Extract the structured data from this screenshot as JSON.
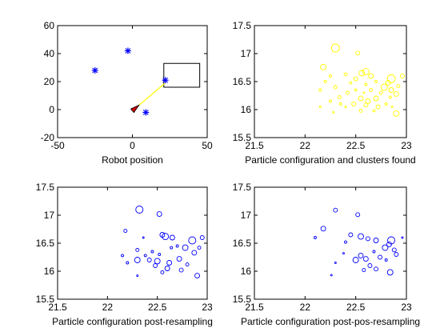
{
  "chart_data": [
    {
      "type": "scatter",
      "xlabel": "Robot position",
      "ylabel": "",
      "xlim": [
        -50,
        50
      ],
      "ylim": [
        -20,
        60
      ],
      "xticks": [
        -50,
        0,
        50
      ],
      "yticks": [
        -20,
        0,
        20,
        40,
        60
      ],
      "colors": {
        "landmark": "#0000ff",
        "robot": "#cc0000",
        "path": "#ffff00",
        "axes": "#000000"
      },
      "landmarks": [
        {
          "x": -25,
          "y": 28
        },
        {
          "x": -3,
          "y": 42
        },
        {
          "x": 22,
          "y": 21
        },
        {
          "x": 9,
          "y": -2
        }
      ],
      "robot": {
        "x": 2,
        "y": 1,
        "heading_deg": 40
      },
      "path": [
        {
          "x": 2,
          "y": 1
        },
        {
          "x": 22,
          "y": 19
        }
      ],
      "observation_box": {
        "x_range": [
          21,
          45
        ],
        "y_range": [
          16,
          33
        ]
      }
    },
    {
      "type": "scatter",
      "xlabel": "Particle configuration and clusters found",
      "ylabel": "",
      "xlim": [
        21.5,
        23
      ],
      "ylim": [
        15.5,
        17.5
      ],
      "xticks": [
        21.5,
        22,
        22.5,
        23
      ],
      "yticks": [
        15.5,
        16,
        16.5,
        17,
        17.5
      ],
      "marker_color": "#ffff00",
      "points": [
        [
          22.3,
          17.1,
          5
        ],
        [
          22.18,
          16.76,
          3.5
        ],
        [
          22.52,
          17.01,
          2.5
        ],
        [
          22.6,
          16.68,
          4
        ],
        [
          22.56,
          16.65,
          3.5
        ],
        [
          22.65,
          16.6,
          3
        ],
        [
          22.5,
          16.55,
          2.5
        ],
        [
          22.85,
          16.55,
          5
        ],
        [
          22.82,
          16.48,
          3
        ],
        [
          22.78,
          16.4,
          4
        ],
        [
          22.85,
          16.35,
          3
        ],
        [
          22.9,
          16.28,
          3
        ],
        [
          22.7,
          16.2,
          3
        ],
        [
          22.55,
          16.2,
          3
        ],
        [
          22.62,
          16.15,
          3
        ],
        [
          22.48,
          16.1,
          2.5
        ],
        [
          22.6,
          16.08,
          2.5
        ],
        [
          22.72,
          16.05,
          2.5
        ],
        [
          22.9,
          15.93,
          3.5
        ],
        [
          22.3,
          16.4,
          2
        ],
        [
          22.42,
          16.3,
          2
        ],
        [
          22.34,
          16.22,
          2
        ],
        [
          22.96,
          16.6,
          2.5
        ],
        [
          22.4,
          16.63,
          2
        ],
        [
          22.25,
          16.6,
          1.5
        ],
        [
          22.2,
          16.5,
          1.5
        ],
        [
          22.15,
          16.35,
          1.5
        ],
        [
          22.45,
          16.48,
          1.5
        ],
        [
          22.65,
          16.35,
          2
        ],
        [
          22.75,
          16.3,
          2
        ],
        [
          22.5,
          16.35,
          1.5
        ],
        [
          22.35,
          16.1,
          1.5
        ],
        [
          22.25,
          16.15,
          1.5
        ],
        [
          22.55,
          15.98,
          2
        ],
        [
          22.8,
          16.1,
          1.5
        ],
        [
          22.92,
          16.42,
          2
        ],
        [
          22.15,
          16.05,
          1
        ],
        [
          22.28,
          15.95,
          1
        ],
        [
          22.7,
          16.5,
          1.5
        ],
        [
          22.6,
          16.45,
          1.5
        ],
        [
          22.4,
          16.05,
          1
        ],
        [
          22.68,
          15.98,
          1.5
        ],
        [
          22.84,
          16.22,
          1.5
        ],
        [
          22.86,
          16.05,
          1
        ],
        [
          22.58,
          16.3,
          1
        ]
      ]
    },
    {
      "type": "scatter",
      "xlabel": "Particle configuration post-resampling",
      "ylabel": "",
      "xlim": [
        21.5,
        23
      ],
      "ylim": [
        15.5,
        17.5
      ],
      "xticks": [
        21.5,
        22,
        22.5,
        23
      ],
      "yticks": [
        15.5,
        16,
        16.5,
        17,
        17.5
      ],
      "marker_color": "#0000ff",
      "points": [
        [
          22.32,
          17.1,
          4.5
        ],
        [
          22.52,
          17.02,
          3
        ],
        [
          22.18,
          16.72,
          2
        ],
        [
          22.55,
          16.65,
          3
        ],
        [
          22.58,
          16.62,
          4
        ],
        [
          22.65,
          16.6,
          3
        ],
        [
          22.85,
          16.55,
          4.5
        ],
        [
          22.78,
          16.42,
          3.5
        ],
        [
          22.87,
          16.33,
          3
        ],
        [
          22.72,
          16.22,
          3
        ],
        [
          22.62,
          16.15,
          3
        ],
        [
          22.5,
          16.18,
          3.5
        ],
        [
          22.42,
          16.2,
          2.5
        ],
        [
          22.48,
          16.1,
          2.5
        ],
        [
          22.6,
          16.05,
          3
        ],
        [
          22.74,
          16.02,
          2.5
        ],
        [
          22.9,
          15.92,
          3
        ],
        [
          22.3,
          16.38,
          2
        ],
        [
          22.38,
          16.28,
          1.5
        ],
        [
          22.3,
          16.2,
          3.5
        ],
        [
          22.95,
          16.6,
          2.5
        ],
        [
          22.15,
          16.28,
          1.5
        ],
        [
          22.2,
          16.15,
          1.5
        ],
        [
          22.55,
          15.98,
          2
        ],
        [
          22.45,
          16.35,
          1.5
        ],
        [
          22.7,
          16.45,
          1.5
        ],
        [
          22.3,
          15.92,
          1
        ],
        [
          22.8,
          16.12,
          2
        ],
        [
          22.92,
          16.42,
          2
        ],
        [
          22.52,
          16.3,
          1.5
        ],
        [
          22.64,
          16.42,
          1.5
        ],
        [
          22.36,
          16.6,
          1
        ]
      ]
    },
    {
      "type": "scatter",
      "xlabel": "Particle configuration post-pos-resampling",
      "ylabel": "",
      "xlim": [
        21.5,
        23
      ],
      "ylim": [
        15.5,
        17.5
      ],
      "xticks": [
        21.5,
        22,
        22.5,
        23
      ],
      "yticks": [
        15.5,
        16,
        16.5,
        17,
        17.5
      ],
      "marker_color": "#0000ff",
      "points": [
        [
          22.3,
          17.09,
          2.5
        ],
        [
          22.52,
          17.01,
          2.5
        ],
        [
          22.18,
          16.76,
          3
        ],
        [
          22.1,
          16.6,
          1.5
        ],
        [
          22.45,
          16.65,
          2.5
        ],
        [
          22.55,
          16.62,
          3.5
        ],
        [
          22.62,
          16.58,
          2.5
        ],
        [
          22.7,
          16.55,
          3
        ],
        [
          22.85,
          16.55,
          4.5
        ],
        [
          22.83,
          16.48,
          3
        ],
        [
          22.79,
          16.42,
          3.5
        ],
        [
          22.88,
          16.38,
          2.5
        ],
        [
          22.9,
          16.3,
          2.5
        ],
        [
          22.74,
          16.25,
          2.5
        ],
        [
          22.6,
          16.22,
          3
        ],
        [
          22.55,
          16.28,
          3
        ],
        [
          22.5,
          16.2,
          3.5
        ],
        [
          22.64,
          16.1,
          2.5
        ],
        [
          22.7,
          16.04,
          2.5
        ],
        [
          22.84,
          15.98,
          3.5
        ],
        [
          22.58,
          16.02,
          2
        ],
        [
          22.4,
          16.52,
          1.5
        ],
        [
          22.96,
          16.6,
          1
        ],
        [
          22.3,
          16.15,
          1
        ],
        [
          22.38,
          16.32,
          1
        ],
        [
          22.68,
          16.35,
          1.5
        ],
        [
          22.26,
          15.93,
          1
        ],
        [
          22.8,
          16.2,
          1.5
        ]
      ]
    }
  ]
}
